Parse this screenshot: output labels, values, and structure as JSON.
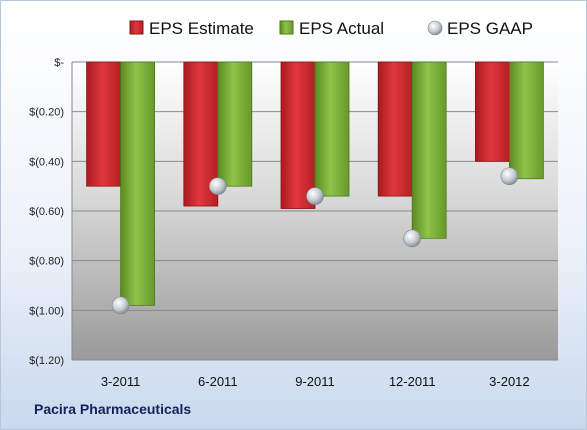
{
  "company": "Pacira Pharmaceuticals",
  "chart_data": {
    "type": "bar",
    "categories": [
      "3-2011",
      "6-2011",
      "9-2011",
      "12-2011",
      "3-2012"
    ],
    "series": [
      {
        "name": "EPS Estimate",
        "kind": "bar",
        "color": "#d7262b",
        "values": [
          -0.5,
          -0.58,
          -0.59,
          -0.54,
          -0.4
        ]
      },
      {
        "name": "EPS Actual",
        "kind": "bar",
        "color": "#7fb23a",
        "values": [
          -0.98,
          -0.5,
          -0.54,
          -0.71,
          -0.47
        ]
      },
      {
        "name": "EPS GAAP",
        "kind": "marker",
        "color": "#b9c2cc",
        "values": [
          -0.98,
          -0.5,
          -0.54,
          -0.71,
          -0.46
        ]
      }
    ],
    "yticks": [
      "$-",
      "$(0.20)",
      "$(0.40)",
      "$(0.60)",
      "$(0.80)",
      "$(1.00)",
      "$(1.20)"
    ],
    "ylim": [
      -1.2,
      0
    ],
    "grid": true,
    "legend": "top"
  }
}
